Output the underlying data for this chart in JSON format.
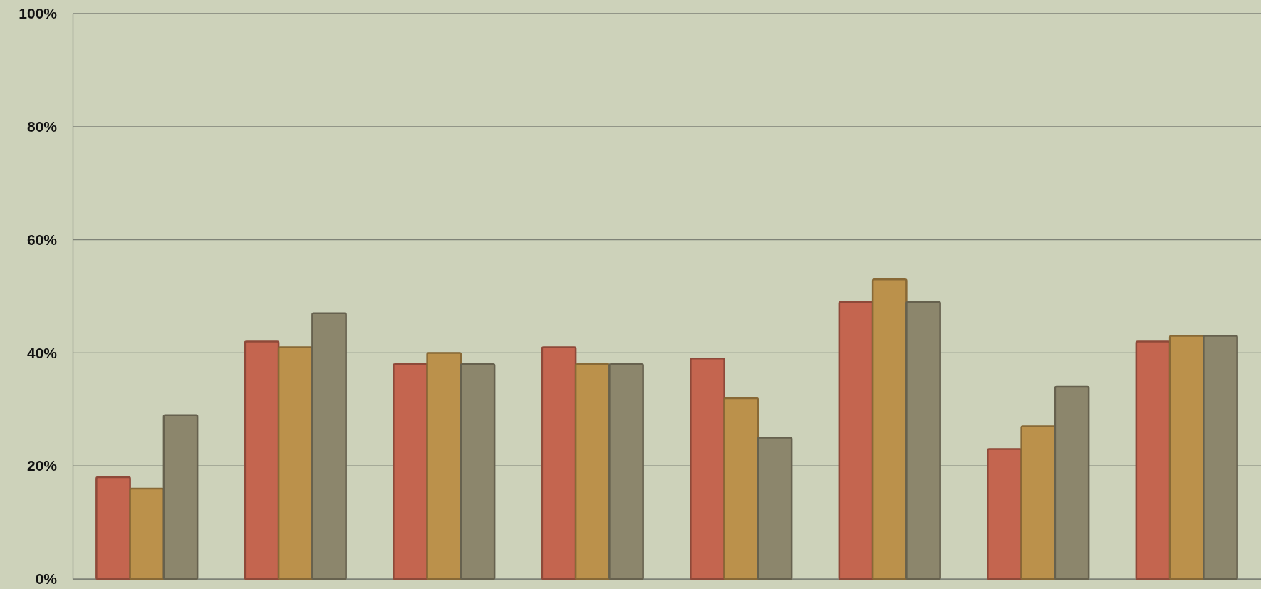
{
  "chart_data": {
    "type": "bar",
    "categories": [
      null,
      null,
      null,
      null,
      null,
      null,
      null,
      null
    ],
    "series": [
      {
        "color": "#c4654f",
        "values": [
          18,
          42,
          38,
          41,
          39,
          49,
          23,
          42
        ]
      },
      {
        "color": "#bb914b",
        "values": [
          16,
          41,
          40,
          38,
          32,
          53,
          27,
          43
        ]
      },
      {
        "color": "#8c866c",
        "values": [
          29,
          47,
          38,
          38,
          25,
          49,
          34,
          43
        ]
      }
    ],
    "ylim": [
      0,
      100
    ],
    "yticks": [
      {
        "value": 0,
        "label": "0%"
      },
      {
        "value": 20,
        "label": "20%"
      },
      {
        "value": 40,
        "label": "40%"
      },
      {
        "value": 60,
        "label": "60%"
      },
      {
        "value": 80,
        "label": "80%"
      },
      {
        "value": 100,
        "label": "100%"
      }
    ],
    "grid": "y",
    "tick_labels": "y"
  }
}
